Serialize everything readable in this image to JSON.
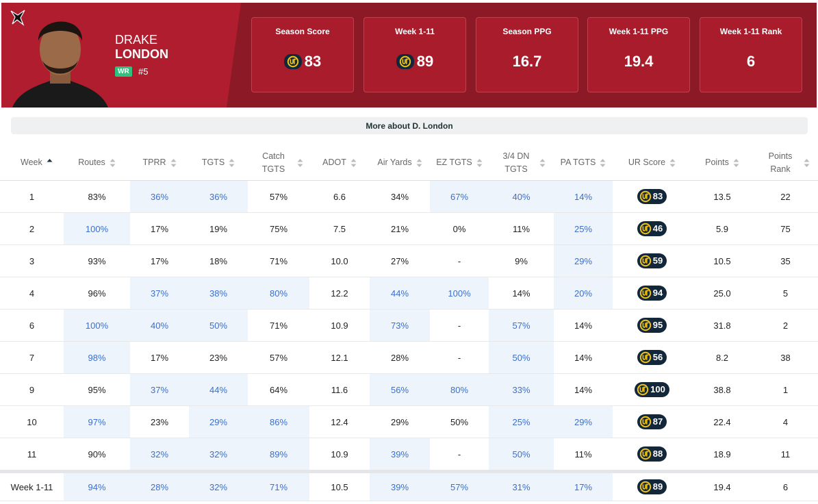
{
  "player": {
    "first_name": "DRAKE",
    "last_name": "LONDON",
    "position": "WR",
    "number": "#5"
  },
  "cards": [
    {
      "label": "Season Score",
      "value": "83",
      "ur_badge": true
    },
    {
      "label": "Week 1-11",
      "value": "89",
      "ur_badge": true
    },
    {
      "label": "Season PPG",
      "value": "16.7",
      "ur_badge": false
    },
    {
      "label": "Week 1-11 PPG",
      "value": "19.4",
      "ur_badge": false
    },
    {
      "label": "Week 1-11 Rank",
      "value": "6",
      "ur_badge": false
    }
  ],
  "more_button": "More about D. London",
  "table": {
    "headers": [
      "Week",
      "Routes",
      "TPRR",
      "TGTS",
      "Catch TGTS",
      "ADOT",
      "Air Yards",
      "EZ TGTS",
      "3/4 DN TGTS",
      "PA TGTS",
      "UR Score",
      "Points",
      "Points Rank"
    ],
    "badge_column": 10,
    "rows": [
      [
        "1",
        "83%",
        "36%",
        "36%",
        "57%",
        "6.6",
        "34%",
        "67%",
        "40%",
        "14%",
        "83",
        "13.5",
        "22"
      ],
      [
        "2",
        "100%",
        "17%",
        "19%",
        "75%",
        "7.5",
        "21%",
        "0%",
        "11%",
        "25%",
        "46",
        "5.9",
        "75"
      ],
      [
        "3",
        "93%",
        "17%",
        "18%",
        "71%",
        "10.0",
        "27%",
        "-",
        "9%",
        "29%",
        "59",
        "10.5",
        "35"
      ],
      [
        "4",
        "96%",
        "37%",
        "38%",
        "80%",
        "12.2",
        "44%",
        "100%",
        "14%",
        "20%",
        "94",
        "25.0",
        "5"
      ],
      [
        "6",
        "100%",
        "40%",
        "50%",
        "71%",
        "10.9",
        "73%",
        "-",
        "57%",
        "14%",
        "95",
        "31.8",
        "2"
      ],
      [
        "7",
        "98%",
        "17%",
        "23%",
        "57%",
        "12.1",
        "28%",
        "-",
        "50%",
        "14%",
        "56",
        "8.2",
        "38"
      ],
      [
        "9",
        "95%",
        "37%",
        "44%",
        "64%",
        "11.6",
        "56%",
        "80%",
        "33%",
        "14%",
        "100",
        "38.8",
        "1"
      ],
      [
        "10",
        "97%",
        "23%",
        "29%",
        "86%",
        "12.4",
        "29%",
        "50%",
        "25%",
        "29%",
        "87",
        "22.4",
        "4"
      ],
      [
        "11",
        "90%",
        "32%",
        "32%",
        "89%",
        "10.9",
        "39%",
        "-",
        "50%",
        "11%",
        "88",
        "18.9",
        "11"
      ]
    ],
    "highlighted": [
      [
        false,
        false,
        true,
        true,
        false,
        false,
        false,
        true,
        true,
        true,
        false,
        false,
        false
      ],
      [
        false,
        true,
        false,
        false,
        false,
        false,
        false,
        false,
        false,
        true,
        false,
        false,
        false
      ],
      [
        false,
        false,
        false,
        false,
        false,
        false,
        false,
        false,
        false,
        true,
        false,
        false,
        false
      ],
      [
        false,
        false,
        true,
        true,
        true,
        false,
        true,
        true,
        false,
        true,
        false,
        false,
        false
      ],
      [
        false,
        true,
        true,
        true,
        false,
        false,
        true,
        false,
        true,
        false,
        false,
        false,
        false
      ],
      [
        false,
        true,
        false,
        false,
        false,
        false,
        false,
        false,
        true,
        false,
        false,
        false,
        false
      ],
      [
        false,
        false,
        true,
        true,
        false,
        false,
        true,
        true,
        true,
        false,
        false,
        false,
        false
      ],
      [
        false,
        true,
        false,
        true,
        true,
        false,
        false,
        false,
        true,
        true,
        false,
        false,
        false
      ],
      [
        false,
        false,
        true,
        true,
        true,
        false,
        true,
        false,
        true,
        false,
        false,
        false,
        false
      ]
    ],
    "summary": [
      "Week 1-11",
      "94%",
      "28%",
      "32%",
      "71%",
      "10.5",
      "39%",
      "57%",
      "31%",
      "17%",
      "89",
      "19.4",
      "6"
    ],
    "summary_highlighted": [
      false,
      true,
      true,
      true,
      true,
      false,
      true,
      true,
      true,
      true,
      false,
      false,
      false
    ]
  }
}
